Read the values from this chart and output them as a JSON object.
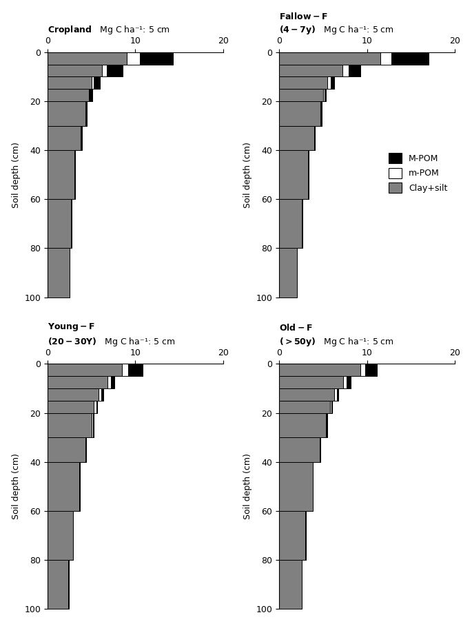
{
  "panels": [
    {
      "title": "Cropland",
      "subtitle": "",
      "depth_tops": [
        0,
        5,
        10,
        15,
        20,
        30,
        40,
        60,
        80
      ],
      "depth_bots": [
        5,
        10,
        15,
        20,
        30,
        40,
        60,
        80,
        100
      ],
      "clay_silt": [
        9.0,
        6.2,
        5.0,
        4.7,
        4.3,
        3.8,
        3.1,
        2.7,
        2.5
      ],
      "m_pom": [
        1.5,
        0.55,
        0.25,
        0.12,
        0.08,
        0.06,
        0.04,
        0.02,
        0.01
      ],
      "M_POM": [
        3.8,
        1.8,
        0.7,
        0.25,
        0.08,
        0.04,
        0.02,
        0.01,
        0.005
      ]
    },
    {
      "title": "Fallow-F",
      "subtitle": "(4-7y)",
      "depth_tops": [
        0,
        5,
        10,
        15,
        20,
        30,
        40,
        60,
        80
      ],
      "depth_bots": [
        5,
        10,
        15,
        20,
        30,
        40,
        60,
        80,
        100
      ],
      "clay_silt": [
        11.5,
        7.2,
        5.5,
        5.0,
        4.7,
        4.0,
        3.3,
        2.6,
        2.0
      ],
      "m_pom": [
        1.3,
        0.7,
        0.35,
        0.18,
        0.08,
        0.05,
        0.03,
        0.015,
        0.008
      ],
      "M_POM": [
        4.2,
        1.3,
        0.45,
        0.18,
        0.06,
        0.03,
        0.015,
        0.008,
        0.004
      ]
    },
    {
      "title": "Young-F",
      "subtitle": "(20-30Y)",
      "depth_tops": [
        0,
        5,
        10,
        15,
        20,
        30,
        40,
        60,
        80
      ],
      "depth_bots": [
        5,
        10,
        15,
        20,
        30,
        40,
        60,
        80,
        100
      ],
      "clay_silt": [
        8.5,
        6.8,
        5.8,
        5.3,
        5.0,
        4.3,
        3.6,
        2.9,
        2.4
      ],
      "m_pom": [
        0.7,
        0.45,
        0.35,
        0.28,
        0.18,
        0.1,
        0.06,
        0.035,
        0.015
      ],
      "M_POM": [
        1.6,
        0.35,
        0.18,
        0.1,
        0.05,
        0.025,
        0.015,
        0.008,
        0.004
      ]
    },
    {
      "title": "Old-F",
      "subtitle": "(>50y)",
      "depth_tops": [
        0,
        5,
        10,
        15,
        20,
        30,
        40,
        60,
        80
      ],
      "depth_bots": [
        5,
        10,
        15,
        20,
        30,
        40,
        60,
        80,
        100
      ],
      "clay_silt": [
        9.2,
        7.3,
        6.3,
        5.8,
        5.3,
        4.6,
        3.8,
        3.0,
        2.6
      ],
      "m_pom": [
        0.55,
        0.38,
        0.28,
        0.18,
        0.12,
        0.08,
        0.05,
        0.025,
        0.012
      ],
      "M_POM": [
        1.4,
        0.45,
        0.18,
        0.08,
        0.05,
        0.025,
        0.012,
        0.006,
        0.003
      ]
    }
  ],
  "xlim": [
    0,
    20
  ],
  "ylim": [
    100,
    0
  ],
  "xticks": [
    0,
    10,
    20
  ],
  "yticks": [
    0,
    20,
    40,
    60,
    80,
    100
  ],
  "xlabel": "Mg C ha⁻¹: 5 cm",
  "ylabel": "Soil depth (cm)",
  "color_clay": "#808080",
  "color_mpom": "#ffffff",
  "color_MPOM": "#000000",
  "edgecolor": "#000000",
  "legend_labels": [
    "M-POM",
    "m-POM",
    "Clay+silt"
  ],
  "legend_colors": [
    "#000000",
    "#ffffff",
    "#808080"
  ]
}
